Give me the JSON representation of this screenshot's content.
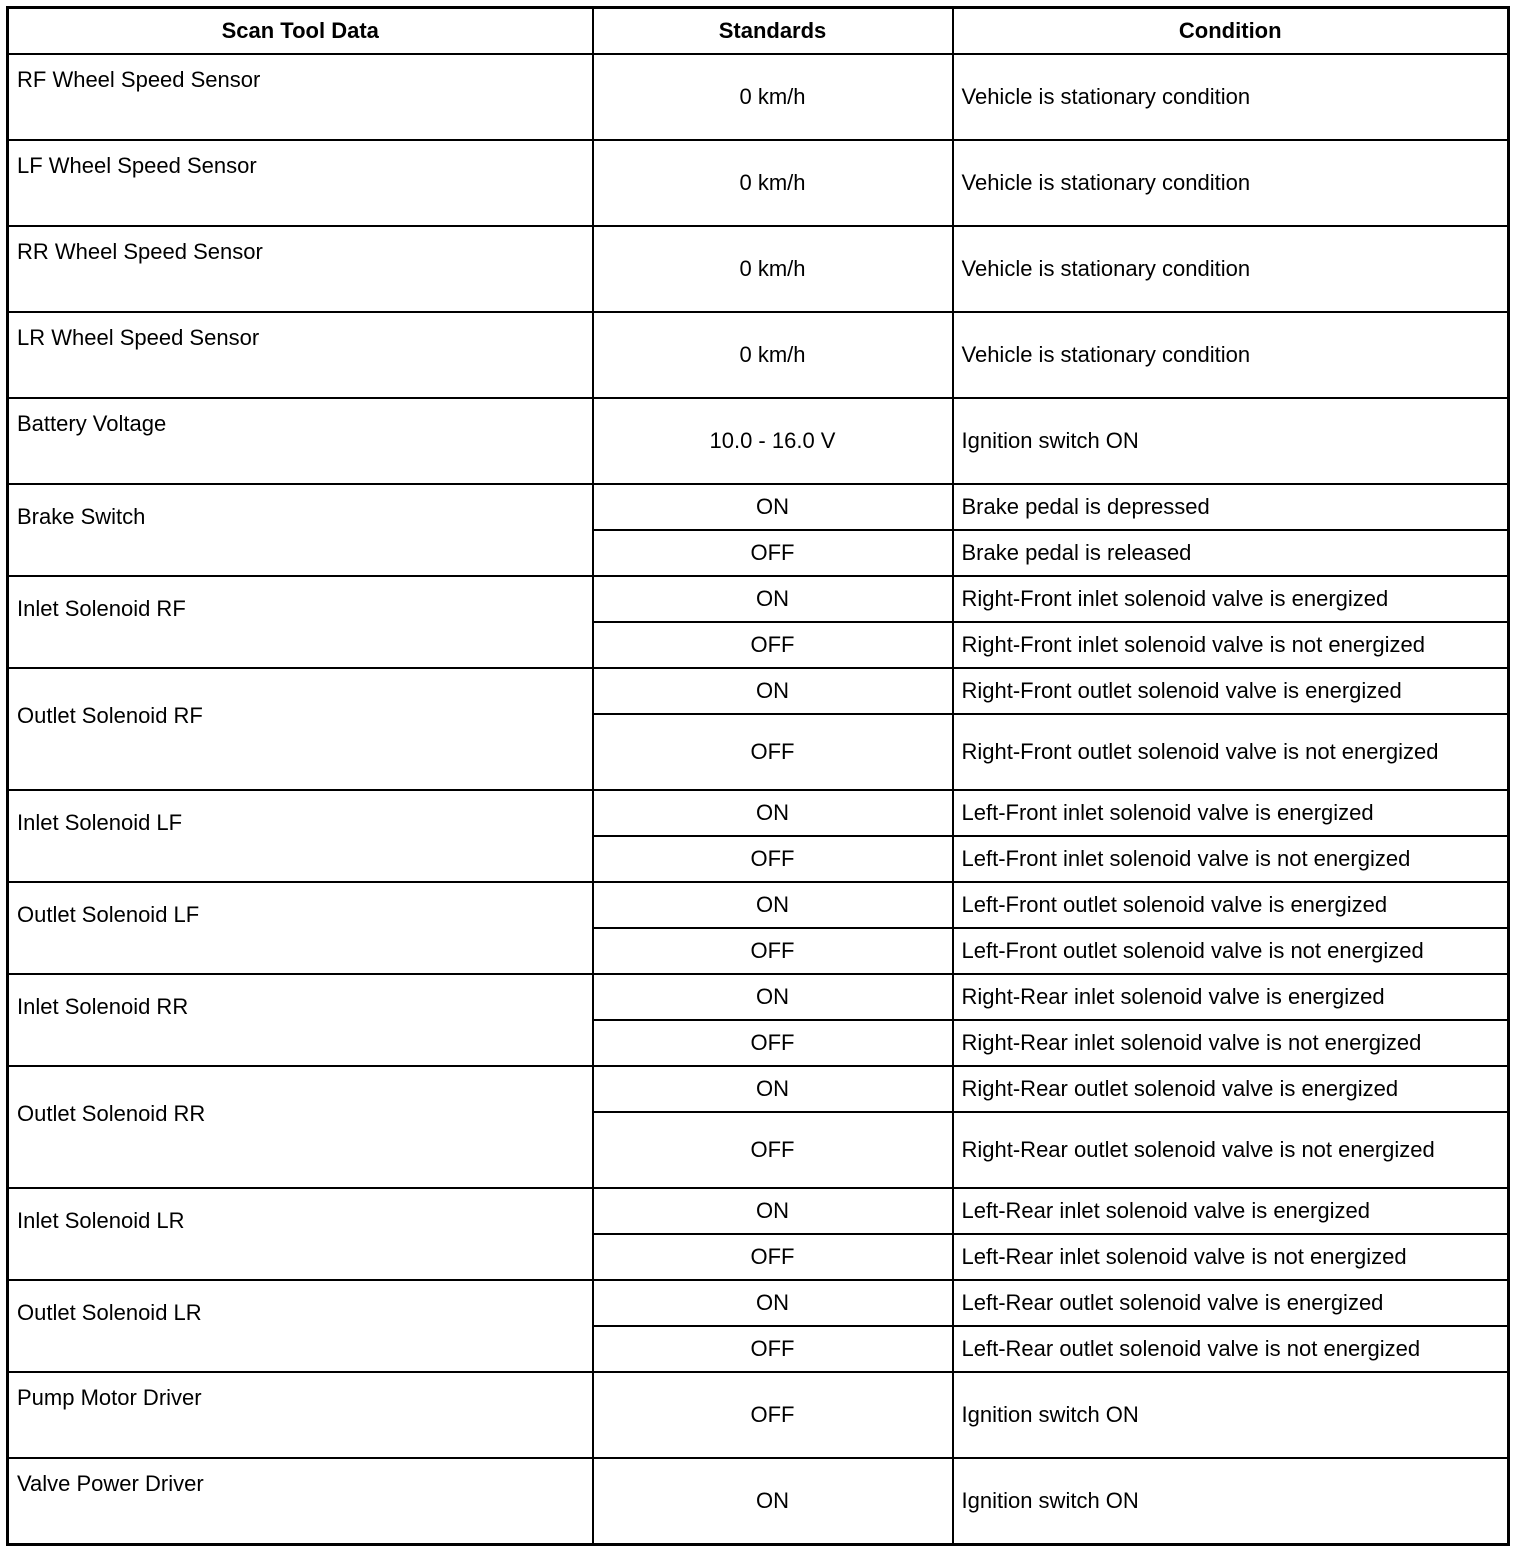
{
  "headers": [
    "Scan Tool Data",
    "Standards",
    "Condition"
  ],
  "rows": [
    {
      "name": "RF Wheel Speed Sensor",
      "entries": [
        {
          "standard": "0 km/h",
          "condition": "Vehicle is stationary condition"
        }
      ]
    },
    {
      "name": "LF Wheel Speed Sensor",
      "entries": [
        {
          "standard": "0 km/h",
          "condition": "Vehicle is stationary condition"
        }
      ]
    },
    {
      "name": "RR Wheel Speed Sensor",
      "entries": [
        {
          "standard": "0 km/h",
          "condition": "Vehicle is stationary condition"
        }
      ]
    },
    {
      "name": "LR Wheel Speed Sensor",
      "entries": [
        {
          "standard": "0 km/h",
          "condition": "Vehicle is stationary condition"
        }
      ]
    },
    {
      "name": "Battery Voltage",
      "entries": [
        {
          "standard": "10.0 - 16.0 V",
          "condition": "Ignition switch ON"
        }
      ]
    },
    {
      "name": "Brake Switch",
      "entries": [
        {
          "standard": "ON",
          "condition": "Brake pedal is depressed"
        },
        {
          "standard": "OFF",
          "condition": "Brake pedal is released"
        }
      ]
    },
    {
      "name": "Inlet Solenoid RF",
      "entries": [
        {
          "standard": "ON",
          "condition": "Right-Front inlet solenoid valve is energized"
        },
        {
          "standard": "OFF",
          "condition": "Right-Front inlet solenoid valve is not energized"
        }
      ]
    },
    {
      "name": "Outlet Solenoid RF",
      "entries": [
        {
          "standard": "ON",
          "condition": "Right-Front outlet solenoid valve is energized"
        },
        {
          "standard": "OFF",
          "condition": "Right-Front outlet solenoid valve is not energized"
        }
      ]
    },
    {
      "name": "Inlet Solenoid LF",
      "entries": [
        {
          "standard": "ON",
          "condition": "Left-Front inlet solenoid valve is energized"
        },
        {
          "standard": "OFF",
          "condition": "Left-Front inlet solenoid valve is not energized"
        }
      ]
    },
    {
      "name": "Outlet Solenoid LF",
      "entries": [
        {
          "standard": "ON",
          "condition": "Left-Front outlet solenoid valve is energized"
        },
        {
          "standard": "OFF",
          "condition": "Left-Front outlet solenoid valve is not energized"
        }
      ]
    },
    {
      "name": "Inlet Solenoid RR",
      "entries": [
        {
          "standard": "ON",
          "condition": "Right-Rear inlet solenoid valve is energized"
        },
        {
          "standard": "OFF",
          "condition": "Right-Rear inlet solenoid valve is not energized"
        }
      ]
    },
    {
      "name": "Outlet Solenoid RR",
      "entries": [
        {
          "standard": "ON",
          "condition": "Right-Rear outlet solenoid valve is energized"
        },
        {
          "standard": "OFF",
          "condition": "Right-Rear outlet solenoid valve is not energized"
        }
      ]
    },
    {
      "name": "Inlet Solenoid LR",
      "entries": [
        {
          "standard": "ON",
          "condition": "Left-Rear inlet solenoid valve is energized"
        },
        {
          "standard": "OFF",
          "condition": "Left-Rear inlet solenoid valve is not energized"
        }
      ]
    },
    {
      "name": "Outlet Solenoid LR",
      "entries": [
        {
          "standard": "ON",
          "condition": "Left-Rear outlet solenoid valve is energized"
        },
        {
          "standard": "OFF",
          "condition": "Left-Rear outlet solenoid valve is not energized"
        }
      ]
    },
    {
      "name": "Pump Motor Driver",
      "entries": [
        {
          "standard": "OFF",
          "condition": "Ignition switch ON"
        }
      ]
    },
    {
      "name": "Valve Power Driver",
      "entries": [
        {
          "standard": "ON",
          "condition": "Ignition switch ON"
        }
      ]
    }
  ]
}
